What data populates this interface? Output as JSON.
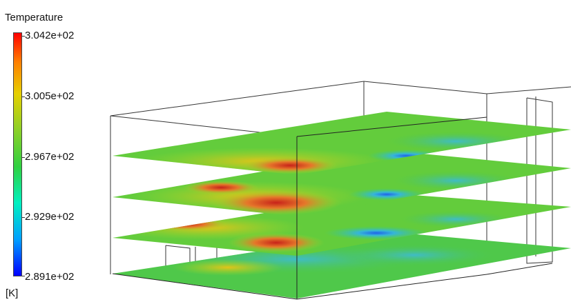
{
  "legend": {
    "title": "Temperature",
    "unit": "[K]",
    "ticks": [
      "3.042e+02",
      "3.005e+02",
      "2.967e+02",
      "2.929e+02",
      "2.891e+02"
    ],
    "range": [
      289.1,
      304.2
    ],
    "colormap": [
      "#0000ff",
      "#00a0ff",
      "#00ffc8",
      "#3cd83c",
      "#9cd82a",
      "#e8d400",
      "#ff8c00",
      "#ff0000"
    ]
  },
  "scene": {
    "slice_count": 4,
    "slice_colors": {
      "base": "#4fc84a",
      "warm": "#d7c21a",
      "hot": "#d2421c",
      "cool": "#45b7c9",
      "cold": "#2c6fe6"
    }
  }
}
